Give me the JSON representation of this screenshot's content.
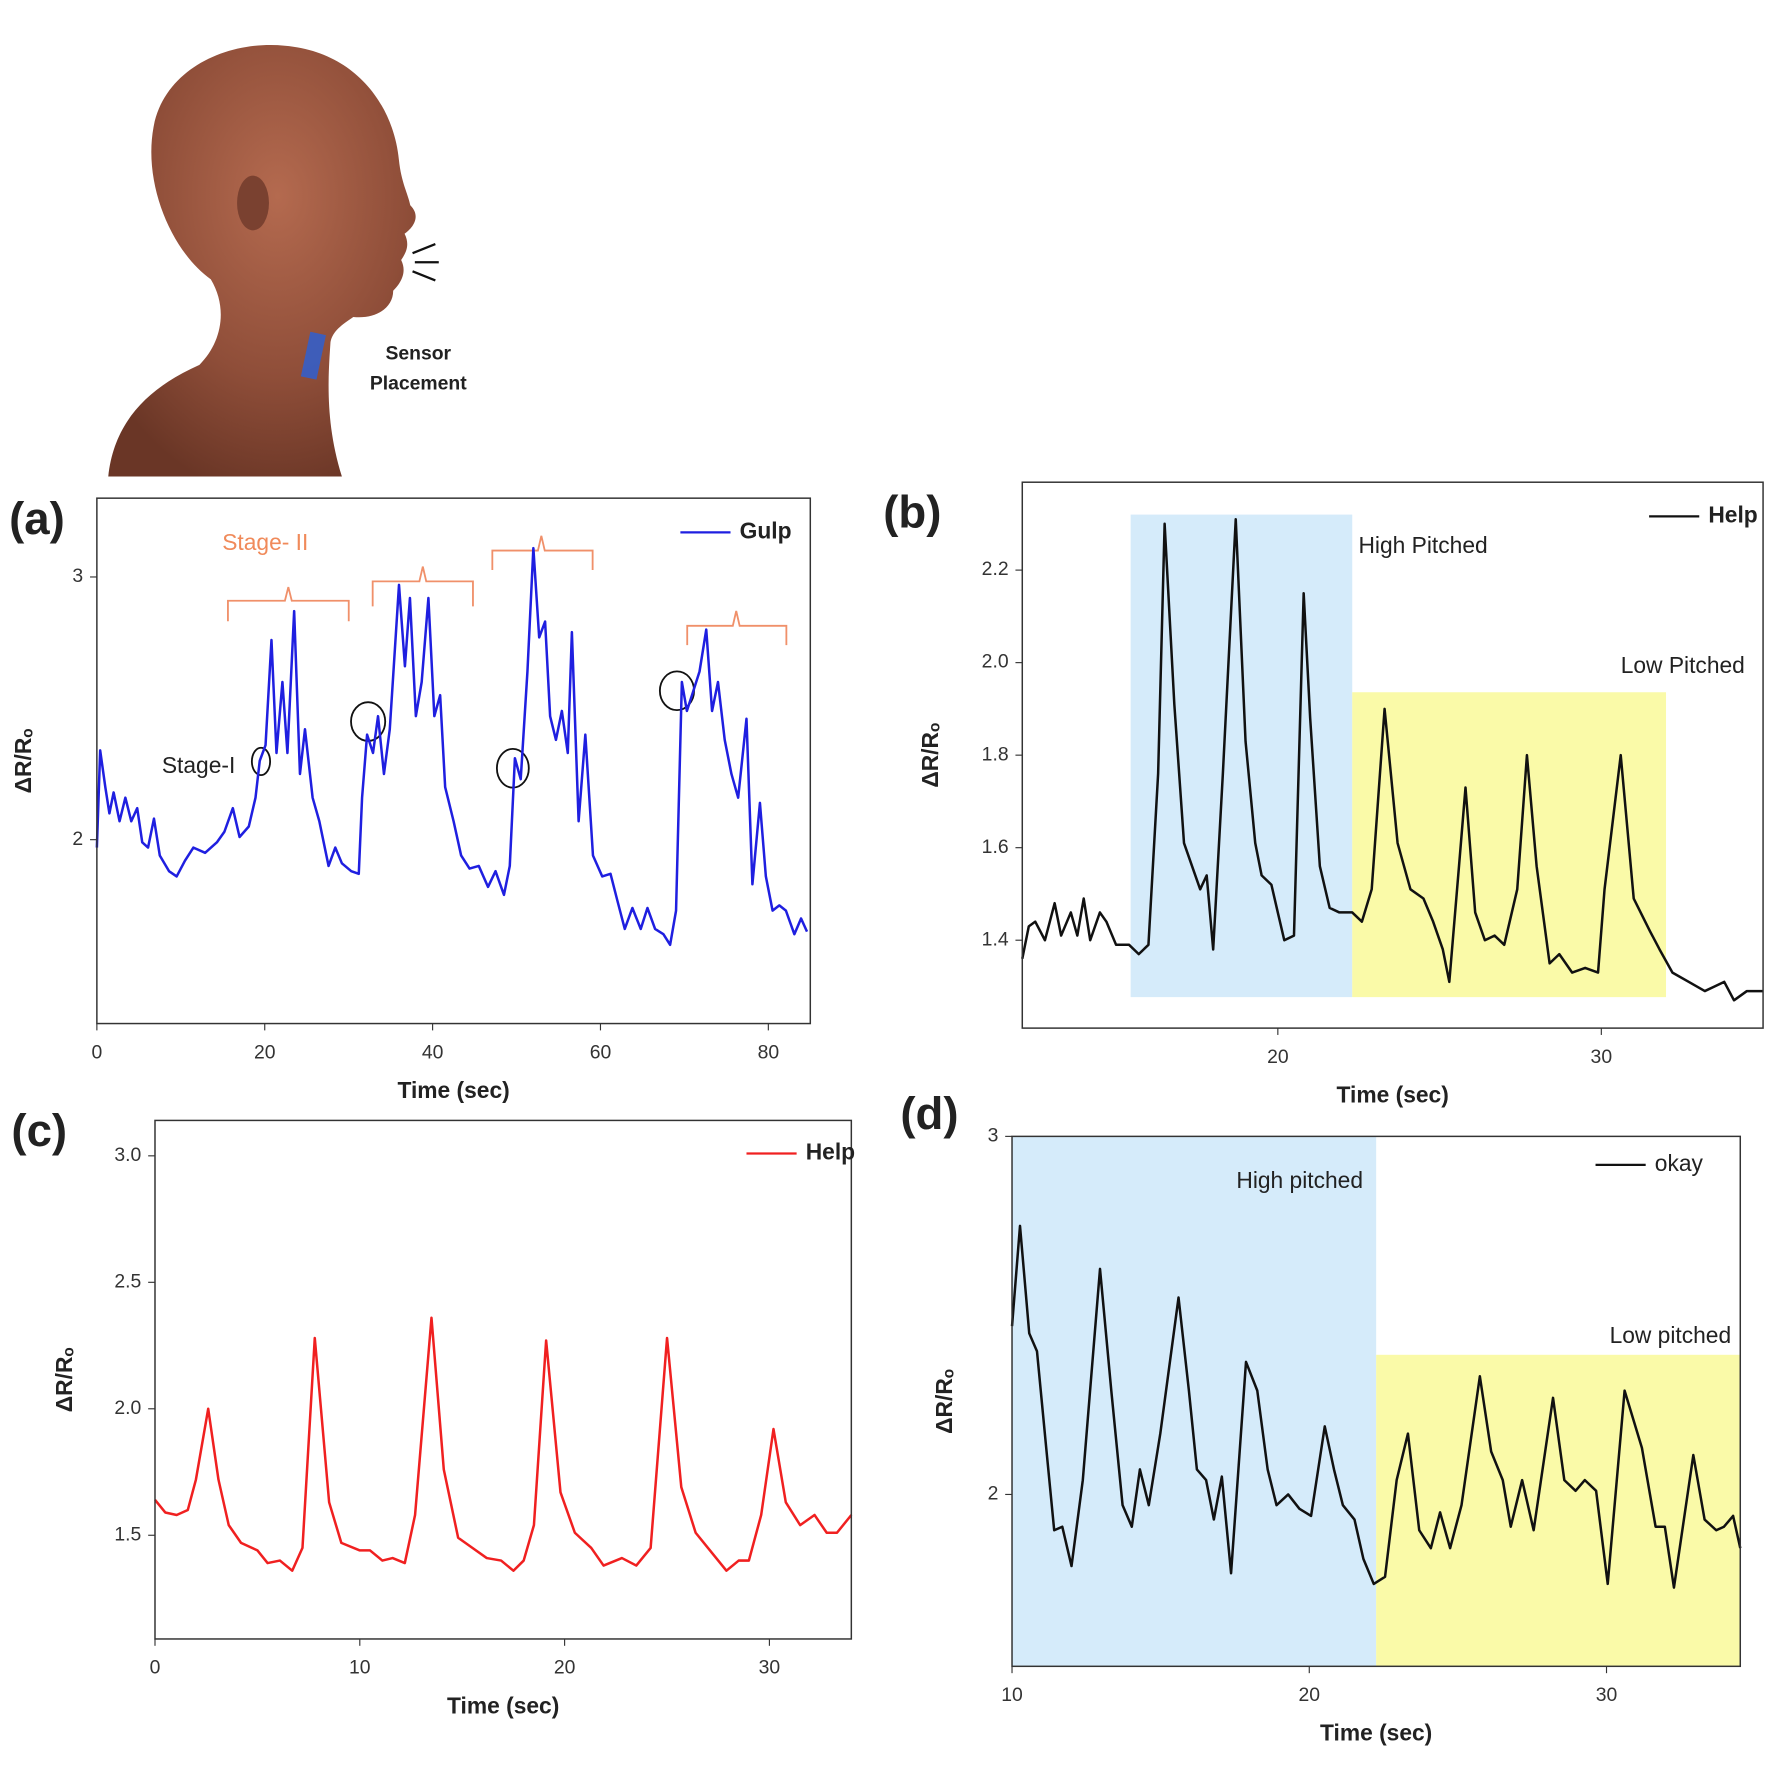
{
  "illustration": {
    "label": [
      "Sensor",
      "Placement"
    ]
  },
  "chart_data": [
    {
      "type": "line",
      "panel": "(a)",
      "x_label": "Time (sec)",
      "y_label": "ΔR/Rₒ",
      "xlim": [
        0,
        85
      ],
      "xticks": [
        0,
        20,
        40,
        60,
        80
      ],
      "ylim": [
        1.3,
        3.3
      ],
      "yticks": [
        2,
        3
      ],
      "annotations": [
        "Stage- II",
        "Stage-I"
      ],
      "x": [
        0,
        0.4,
        1,
        1.5,
        2,
        2.7,
        3.4,
        4.1,
        4.8,
        5.4,
        6.1,
        6.8,
        7.5,
        8.6,
        9.5,
        10.5,
        11.5,
        12.9,
        14.3,
        15.2,
        16.2,
        17,
        18.1,
        18.9,
        19.4,
        20.1,
        20.8,
        21.4,
        22.1,
        22.7,
        23.5,
        24.2,
        24.8,
        25.7,
        26.5,
        27.6,
        28.4,
        29.2,
        30.3,
        31.2,
        31.6,
        32.2,
        32.9,
        33.5,
        34.2,
        34.9,
        36,
        36.7,
        37.3,
        38,
        38.7,
        39.5,
        40.2,
        40.9,
        41.5,
        42.5,
        43.4,
        44.4,
        45.5,
        46.6,
        47.5,
        48.5,
        49.2,
        49.8,
        50.5,
        51.3,
        52,
        52.7,
        53.4,
        54,
        54.7,
        55.4,
        56.1,
        56.6,
        57.4,
        58.2,
        59.1,
        60.2,
        61.2,
        62,
        62.9,
        63.8,
        64.8,
        65.6,
        66.5,
        67.5,
        68.3,
        69,
        69.7,
        70.3,
        71,
        71.8,
        72.6,
        73.3,
        74,
        74.8,
        75.6,
        76.4,
        77.4,
        78.1,
        79,
        79.7,
        80.5,
        81.3,
        82.1,
        83.1,
        83.9,
        84.6
      ],
      "series": [
        {
          "name": "Gulp",
          "color": "#1f1fe0",
          "values": [
            1.97,
            2.34,
            2.2,
            2.1,
            2.18,
            2.07,
            2.16,
            2.07,
            2.12,
            1.99,
            1.97,
            2.08,
            1.94,
            1.88,
            1.86,
            1.92,
            1.97,
            1.95,
            1.99,
            2.03,
            2.12,
            2.01,
            2.05,
            2.16,
            2.3,
            2.36,
            2.76,
            2.33,
            2.6,
            2.33,
            2.87,
            2.25,
            2.42,
            2.16,
            2.07,
            1.9,
            1.97,
            1.91,
            1.88,
            1.87,
            2.16,
            2.4,
            2.33,
            2.47,
            2.25,
            2.42,
            2.97,
            2.66,
            2.92,
            2.47,
            2.6,
            2.92,
            2.47,
            2.55,
            2.2,
            2.07,
            1.94,
            1.89,
            1.9,
            1.82,
            1.88,
            1.79,
            1.9,
            2.31,
            2.23,
            2.64,
            3.11,
            2.77,
            2.83,
            2.47,
            2.38,
            2.49,
            2.33,
            2.79,
            2.07,
            2.4,
            1.94,
            1.86,
            1.87,
            1.77,
            1.66,
            1.74,
            1.66,
            1.74,
            1.66,
            1.64,
            1.6,
            1.73,
            2.6,
            2.49,
            2.56,
            2.64,
            2.8,
            2.49,
            2.6,
            2.38,
            2.25,
            2.16,
            2.46,
            1.83,
            2.14,
            1.86,
            1.73,
            1.75,
            1.73,
            1.64,
            1.7,
            1.65
          ]
        }
      ]
    },
    {
      "type": "line",
      "panel": "(b)",
      "x_label": "Time (sec)",
      "y_label": "ΔR/Rₒ",
      "xlim": [
        12.1,
        35
      ],
      "xticks": [
        20,
        30
      ],
      "ylim": [
        1.21,
        2.39
      ],
      "yticks": [
        1.4,
        1.6,
        1.8,
        {
          "value": 2,
          "label": "2.0"
        },
        2.2
      ],
      "regions": [
        {
          "label": "High Pitched",
          "color": "#d5ebfa",
          "x": [
            15.45,
            22.3
          ],
          "y": [
            1.277,
            2.32
          ]
        },
        {
          "label": "Low Pitched",
          "color": "#fafaa8",
          "x": [
            22.3,
            32
          ],
          "y": [
            1.277,
            1.936
          ]
        }
      ],
      "x": [
        12.1,
        12.3,
        12.5,
        12.8,
        13.1,
        13.3,
        13.6,
        13.8,
        14,
        14.2,
        14.5,
        14.7,
        15,
        15.4,
        15.7,
        16,
        16.3,
        16.5,
        16.8,
        17.1,
        17.4,
        17.6,
        17.8,
        18,
        18.3,
        18.7,
        19,
        19.3,
        19.5,
        19.8,
        20,
        20.2,
        20.5,
        20.8,
        21,
        21.3,
        21.6,
        21.9,
        22.3,
        22.6,
        22.9,
        23.3,
        23.7,
        24.1,
        24.5,
        24.8,
        25.1,
        25.3,
        25.6,
        25.8,
        26.1,
        26.4,
        26.7,
        27,
        27.4,
        27.7,
        28,
        28.4,
        28.7,
        29.1,
        29.5,
        29.9,
        30.1,
        30.6,
        31,
        31.5,
        31.8,
        32.2,
        32.7,
        33.2,
        33.5,
        33.8,
        34.1,
        34.5,
        35
      ],
      "series": [
        {
          "name": "Help",
          "color": "#111111",
          "values": [
            1.36,
            1.43,
            1.44,
            1.4,
            1.48,
            1.41,
            1.46,
            1.41,
            1.49,
            1.4,
            1.46,
            1.44,
            1.39,
            1.39,
            1.37,
            1.39,
            1.76,
            2.3,
            1.91,
            1.61,
            1.55,
            1.51,
            1.54,
            1.38,
            1.76,
            2.31,
            1.83,
            1.61,
            1.54,
            1.52,
            1.46,
            1.4,
            1.41,
            2.15,
            1.88,
            1.56,
            1.47,
            1.46,
            1.46,
            1.44,
            1.51,
            1.9,
            1.61,
            1.51,
            1.49,
            1.44,
            1.38,
            1.31,
            1.56,
            1.73,
            1.46,
            1.4,
            1.41,
            1.39,
            1.51,
            1.8,
            1.56,
            1.35,
            1.37,
            1.33,
            1.34,
            1.33,
            1.51,
            1.8,
            1.49,
            1.42,
            1.38,
            1.33,
            1.31,
            1.29,
            1.3,
            1.31,
            1.27,
            1.29,
            1.29
          ]
        }
      ]
    },
    {
      "type": "line",
      "panel": "(c)",
      "x_label": "Time (sec)",
      "y_label": "ΔR/Rₒ",
      "xlim": [
        0,
        34
      ],
      "xticks": [
        0,
        10,
        20,
        30
      ],
      "ylim": [
        1.09,
        3.14
      ],
      "yticks": [
        1.5,
        {
          "value": 2,
          "label": "2.0"
        },
        2.5,
        {
          "value": 3,
          "label": "3.0"
        }
      ],
      "x": [
        0,
        0.5,
        1.06,
        1.6,
        2,
        2.6,
        3.1,
        3.6,
        4.2,
        5,
        5.5,
        6.1,
        6.7,
        7.2,
        7.8,
        8.5,
        9.1,
        10,
        10.5,
        11.1,
        11.6,
        12.2,
        12.7,
        13.5,
        14.1,
        14.8,
        15.5,
        16.2,
        16.9,
        17.5,
        18,
        18.5,
        19.1,
        19.8,
        20.5,
        21.3,
        21.9,
        22.8,
        23.5,
        24.2,
        25,
        25.7,
        26.4,
        27,
        27.9,
        28.5,
        29,
        29.6,
        30.2,
        30.8,
        31.5,
        32.2,
        32.8,
        33.3,
        34
      ],
      "series": [
        {
          "name": "Help",
          "color": "#f02020",
          "values": [
            1.64,
            1.59,
            1.58,
            1.6,
            1.72,
            2,
            1.72,
            1.54,
            1.47,
            1.44,
            1.39,
            1.4,
            1.36,
            1.45,
            2.28,
            1.63,
            1.47,
            1.44,
            1.44,
            1.4,
            1.41,
            1.39,
            1.58,
            2.36,
            1.76,
            1.49,
            1.45,
            1.41,
            1.4,
            1.36,
            1.4,
            1.54,
            2.27,
            1.67,
            1.51,
            1.45,
            1.38,
            1.41,
            1.38,
            1.45,
            2.28,
            1.69,
            1.51,
            1.45,
            1.36,
            1.4,
            1.4,
            1.58,
            1.92,
            1.63,
            1.54,
            1.58,
            1.51,
            1.51,
            1.58
          ]
        }
      ]
    },
    {
      "type": "line",
      "panel": "(d)",
      "x_label": "Time (sec)",
      "y_label": "ΔR/Rₒ",
      "xlim": [
        10,
        34.5
      ],
      "xticks": [
        10,
        20,
        30
      ],
      "ylim": [
        1.52,
        3
      ],
      "yticks": [
        2,
        3
      ],
      "regions": [
        {
          "label": "High pitched",
          "color": "#d5ebfa",
          "x": [
            10,
            22.25
          ],
          "y": [
            1.52,
            3
          ]
        },
        {
          "label": "Low pitched",
          "color": "#fafaa8",
          "x": [
            22.25,
            34.5
          ],
          "y": [
            1.52,
            2.39
          ]
        }
      ],
      "x": [
        10,
        10.27,
        10.58,
        10.84,
        11.15,
        11.42,
        11.69,
        12,
        12.38,
        12.96,
        13.34,
        13.72,
        14.03,
        14.3,
        14.6,
        14.99,
        15.6,
        15.95,
        16.22,
        16.53,
        16.79,
        17.06,
        17.37,
        17.87,
        18.25,
        18.6,
        18.9,
        19.29,
        19.67,
        20.06,
        20.52,
        20.83,
        21.13,
        21.52,
        21.82,
        22.17,
        22.55,
        22.94,
        23.32,
        23.7,
        24.09,
        24.4,
        24.74,
        25.12,
        25.74,
        26.12,
        26.51,
        26.78,
        27.16,
        27.55,
        28.2,
        28.58,
        28.96,
        29.27,
        29.65,
        30.04,
        30.61,
        31.19,
        31.65,
        31.96,
        32.27,
        32.92,
        33.3,
        33.69,
        33.95,
        34.26,
        34.5
      ],
      "series": [
        {
          "name": "okay",
          "color": "#111111",
          "values": [
            2.47,
            2.75,
            2.45,
            2.4,
            2.13,
            1.9,
            1.91,
            1.8,
            2.04,
            2.63,
            2.29,
            1.97,
            1.91,
            2.07,
            1.97,
            2.17,
            2.55,
            2.29,
            2.07,
            2.04,
            1.93,
            2.05,
            1.78,
            2.37,
            2.29,
            2.07,
            1.97,
            2,
            1.96,
            1.94,
            2.19,
            2.07,
            1.97,
            1.93,
            1.82,
            1.75,
            1.77,
            2.04,
            2.17,
            1.9,
            1.85,
            1.95,
            1.85,
            1.97,
            2.33,
            2.12,
            2.04,
            1.91,
            2.04,
            1.9,
            2.27,
            2.04,
            2.01,
            2.04,
            2.01,
            1.75,
            2.29,
            2.13,
            1.91,
            1.91,
            1.74,
            2.11,
            1.93,
            1.9,
            1.91,
            1.94,
            1.85
          ]
        }
      ]
    }
  ]
}
